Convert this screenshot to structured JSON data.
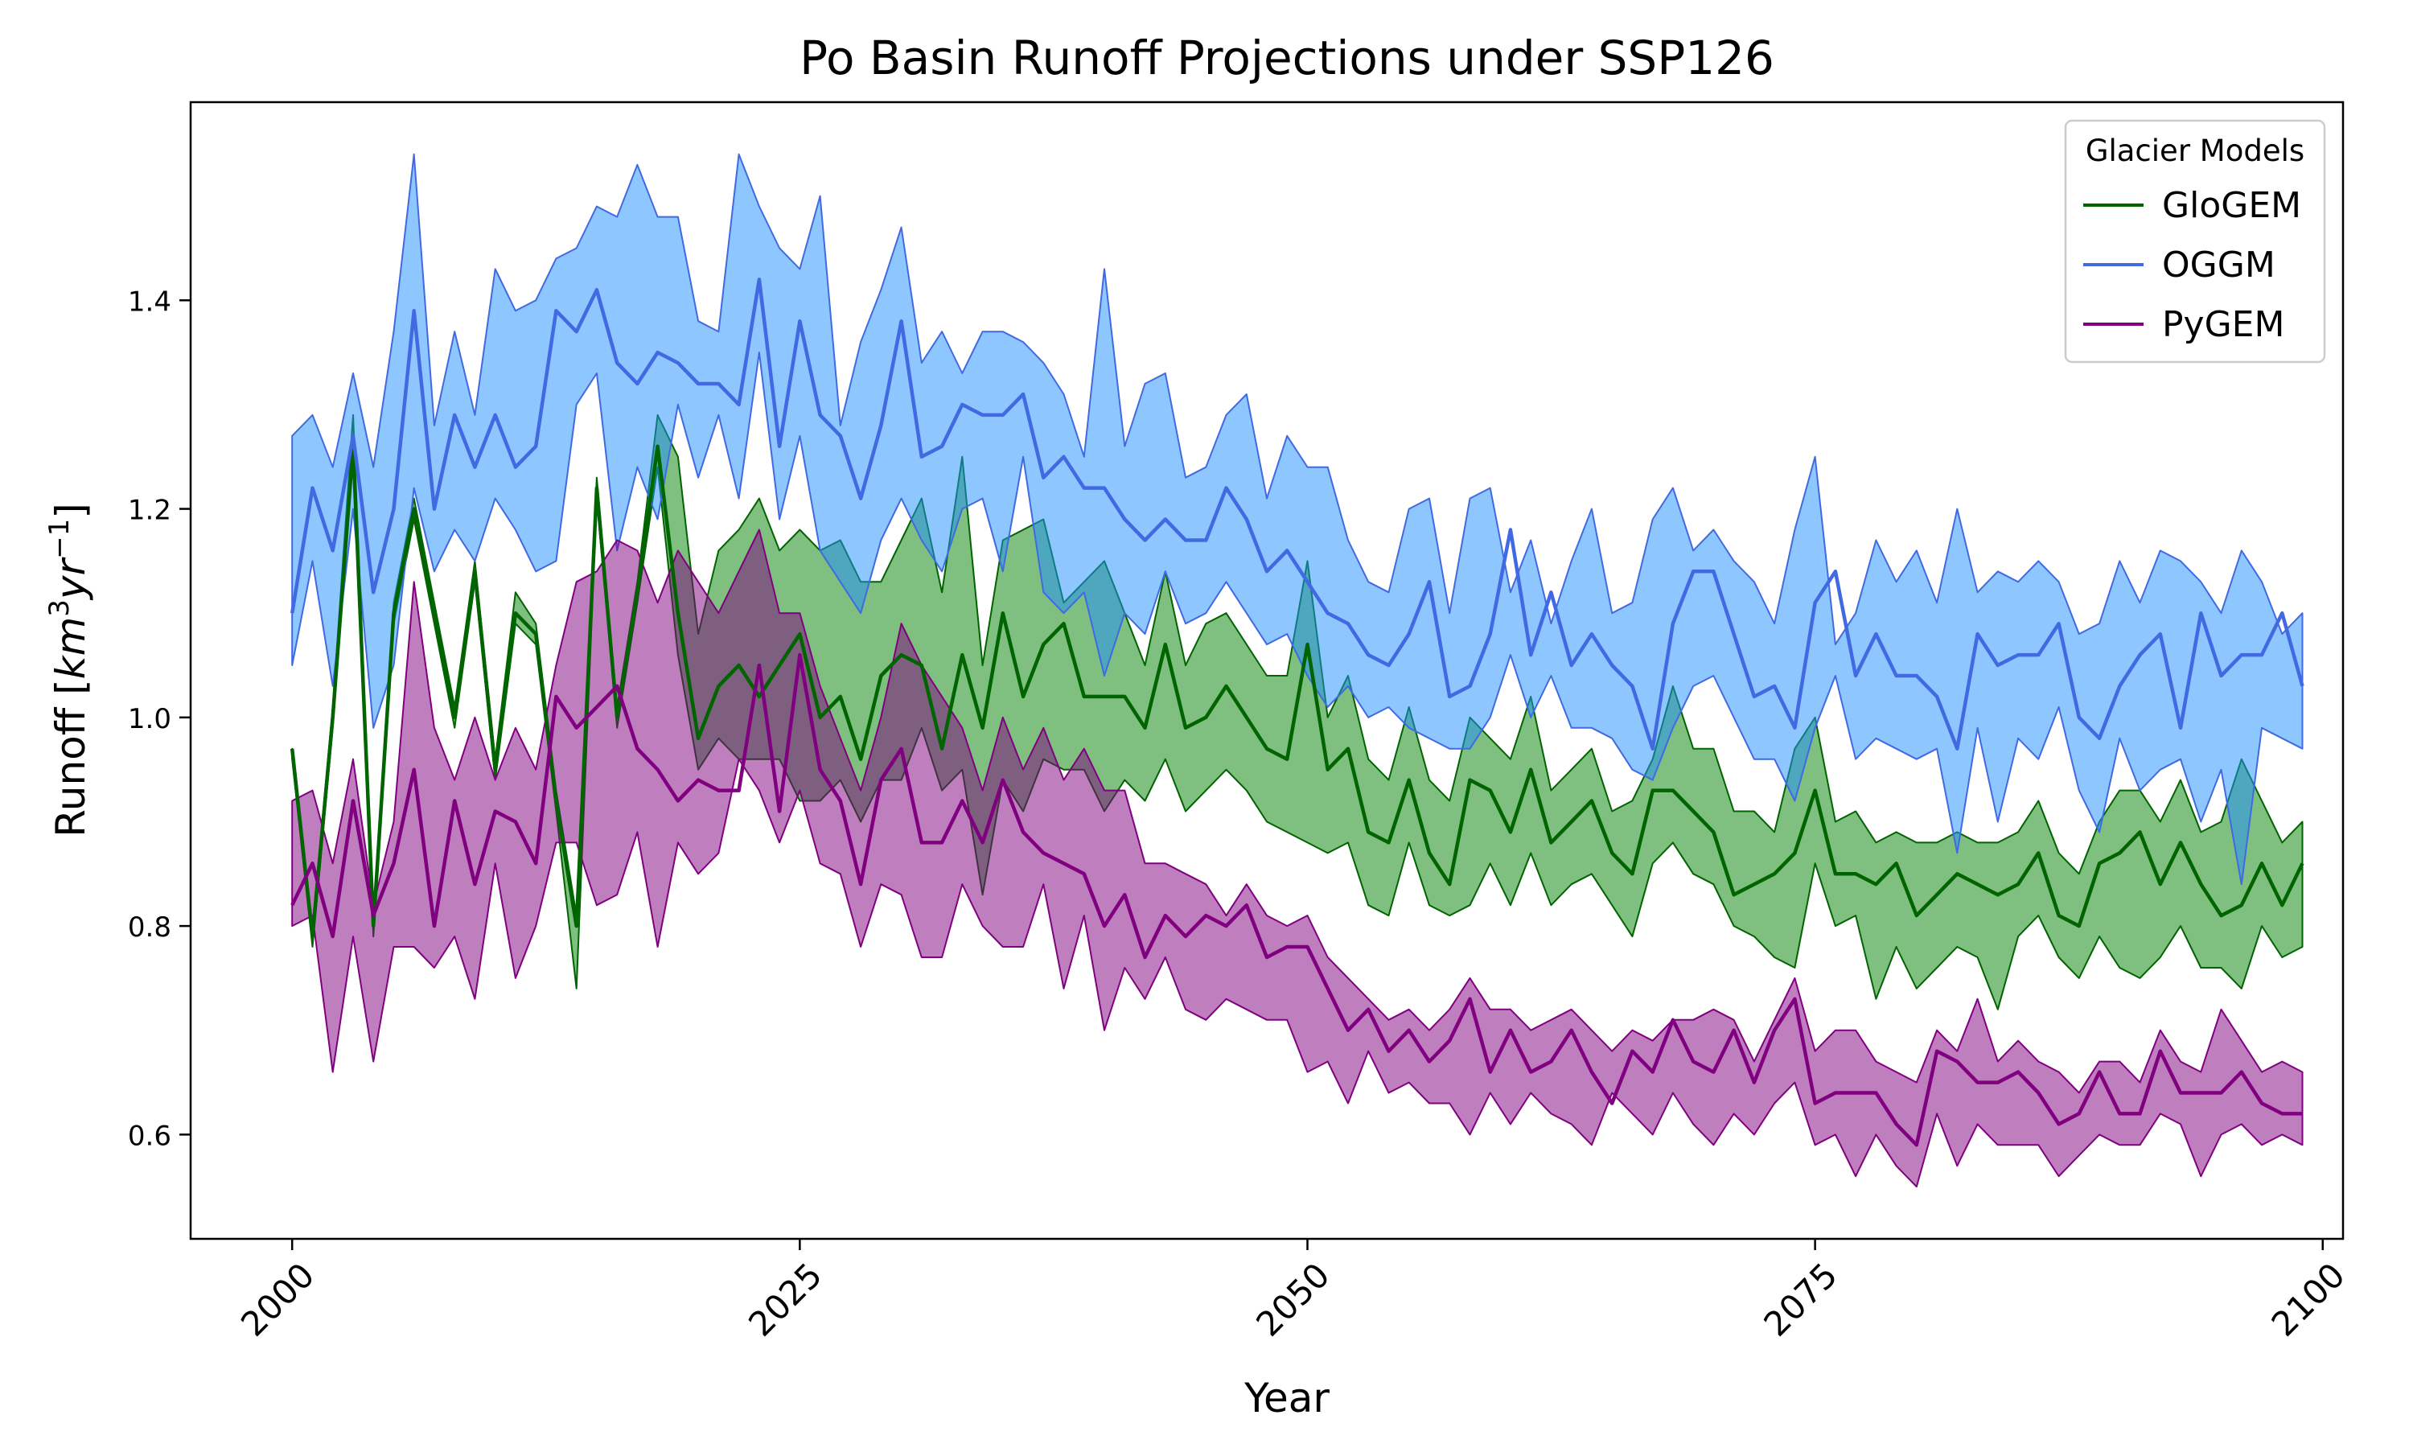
{
  "chart_data": {
    "type": "line",
    "title": "Po Basin Runoff Projections under SSP126",
    "xlabel": "Year",
    "ylabel": "Runoff [km³yr⁻¹]",
    "ylabel_parts": {
      "prefix": "Runoff [",
      "u1": "km",
      "sup1": "3",
      "u2": "yr",
      "sup2": "−1",
      "suffix": "]"
    },
    "xlim": [
      1995,
      2101
    ],
    "ylim": [
      0.5,
      1.59
    ],
    "xticks": [
      2000,
      2025,
      2050,
      2075,
      2100
    ],
    "yticks": [
      0.6,
      0.8,
      1.0,
      1.2,
      1.4
    ],
    "ytick_labels": [
      "0.6",
      "0.8",
      "1.0",
      "1.2",
      "1.4"
    ],
    "legend": {
      "title": "Glacier Models",
      "position": "top-right"
    },
    "x_start": 2000,
    "x_end": 2099,
    "series": [
      {
        "name": "GloGEM",
        "color": "#006400",
        "fill": "#008000",
        "fill_opacity": 0.5,
        "mean": [
          0.97,
          0.79,
          1.0,
          1.26,
          0.8,
          1.1,
          1.2,
          1.1,
          1.0,
          1.14,
          0.95,
          1.1,
          1.08,
          0.92,
          0.8,
          1.22,
          1.0,
          1.12,
          1.26,
          1.1,
          0.98,
          1.03,
          1.05,
          1.02,
          1.05,
          1.08,
          1.0,
          1.02,
          0.96,
          1.04,
          1.06,
          1.05,
          0.97,
          1.06,
          0.99,
          1.1,
          1.02,
          1.07,
          1.09,
          1.02,
          1.02,
          1.02,
          0.99,
          1.07,
          0.99,
          1.0,
          1.03,
          1.0,
          0.97,
          0.96,
          1.07,
          0.95,
          0.97,
          0.89,
          0.88,
          0.94,
          0.87,
          0.84,
          0.94,
          0.93,
          0.89,
          0.95,
          0.88,
          0.9,
          0.92,
          0.87,
          0.85,
          0.93,
          0.93,
          0.91,
          0.89,
          0.83,
          0.84,
          0.85,
          0.87,
          0.93,
          0.85,
          0.85,
          0.84,
          0.86,
          0.81,
          0.83,
          0.85,
          0.84,
          0.83,
          0.84,
          0.87,
          0.81,
          0.8,
          0.86,
          0.87,
          0.89,
          0.84,
          0.88,
          0.84,
          0.81,
          0.82,
          0.86,
          0.82,
          0.86
        ],
        "lower": [
          0.96,
          0.78,
          0.99,
          1.25,
          0.79,
          1.09,
          1.19,
          1.09,
          0.99,
          1.13,
          0.94,
          1.09,
          1.07,
          0.91,
          0.74,
          1.21,
          0.99,
          1.11,
          1.24,
          1.06,
          0.95,
          0.98,
          0.96,
          0.96,
          0.96,
          0.92,
          0.92,
          0.94,
          0.9,
          0.94,
          0.94,
          0.99,
          0.93,
          0.95,
          0.83,
          0.94,
          0.91,
          0.96,
          0.95,
          0.95,
          0.91,
          0.94,
          0.92,
          0.96,
          0.91,
          0.93,
          0.95,
          0.93,
          0.9,
          0.89,
          0.88,
          0.87,
          0.88,
          0.82,
          0.81,
          0.88,
          0.82,
          0.81,
          0.82,
          0.86,
          0.82,
          0.87,
          0.82,
          0.84,
          0.85,
          0.82,
          0.79,
          0.86,
          0.88,
          0.85,
          0.84,
          0.8,
          0.79,
          0.77,
          0.76,
          0.86,
          0.8,
          0.81,
          0.73,
          0.78,
          0.74,
          0.76,
          0.78,
          0.77,
          0.72,
          0.79,
          0.81,
          0.77,
          0.75,
          0.79,
          0.76,
          0.75,
          0.77,
          0.8,
          0.76,
          0.76,
          0.74,
          0.8,
          0.77,
          0.78
        ],
        "upper": [
          0.97,
          0.8,
          1.01,
          1.29,
          0.81,
          1.11,
          1.21,
          1.11,
          1.01,
          1.15,
          0.96,
          1.12,
          1.09,
          0.93,
          0.81,
          1.23,
          1.01,
          1.13,
          1.29,
          1.25,
          1.08,
          1.16,
          1.18,
          1.21,
          1.16,
          1.18,
          1.16,
          1.17,
          1.13,
          1.13,
          1.17,
          1.21,
          1.12,
          1.25,
          1.05,
          1.17,
          1.18,
          1.19,
          1.11,
          1.13,
          1.15,
          1.1,
          1.05,
          1.14,
          1.05,
          1.09,
          1.1,
          1.07,
          1.04,
          1.04,
          1.15,
          1.0,
          1.04,
          0.96,
          0.94,
          1.01,
          0.94,
          0.92,
          1.0,
          0.98,
          0.96,
          1.02,
          0.93,
          0.95,
          0.97,
          0.91,
          0.92,
          0.96,
          1.03,
          0.97,
          0.97,
          0.91,
          0.91,
          0.89,
          0.97,
          1.0,
          0.9,
          0.91,
          0.88,
          0.89,
          0.88,
          0.88,
          0.89,
          0.88,
          0.88,
          0.89,
          0.92,
          0.87,
          0.85,
          0.9,
          0.93,
          0.93,
          0.9,
          0.94,
          0.89,
          0.9,
          0.96,
          0.92,
          0.88,
          0.9
        ]
      },
      {
        "name": "OGGM",
        "color": "#4169e1",
        "fill": "#1e90ff",
        "fill_opacity": 0.5,
        "mean": [
          1.1,
          1.22,
          1.16,
          1.27,
          1.12,
          1.2,
          1.39,
          1.2,
          1.29,
          1.24,
          1.29,
          1.24,
          1.26,
          1.39,
          1.37,
          1.41,
          1.34,
          1.32,
          1.35,
          1.34,
          1.32,
          1.32,
          1.3,
          1.42,
          1.26,
          1.38,
          1.29,
          1.27,
          1.21,
          1.28,
          1.38,
          1.25,
          1.26,
          1.3,
          1.29,
          1.29,
          1.31,
          1.23,
          1.25,
          1.22,
          1.22,
          1.19,
          1.17,
          1.19,
          1.17,
          1.17,
          1.22,
          1.19,
          1.14,
          1.16,
          1.13,
          1.1,
          1.09,
          1.06,
          1.05,
          1.08,
          1.13,
          1.02,
          1.03,
          1.08,
          1.18,
          1.06,
          1.12,
          1.05,
          1.08,
          1.05,
          1.03,
          0.97,
          1.09,
          1.14,
          1.14,
          1.08,
          1.02,
          1.03,
          0.99,
          1.11,
          1.14,
          1.04,
          1.08,
          1.04,
          1.04,
          1.02,
          0.97,
          1.08,
          1.05,
          1.06,
          1.06,
          1.09,
          1.0,
          0.98,
          1.03,
          1.06,
          1.08,
          0.99,
          1.1,
          1.04,
          1.06,
          1.06,
          1.1,
          1.03
        ],
        "lower": [
          1.05,
          1.15,
          1.03,
          1.2,
          0.99,
          1.05,
          1.22,
          1.14,
          1.18,
          1.15,
          1.21,
          1.18,
          1.14,
          1.15,
          1.3,
          1.33,
          1.16,
          1.24,
          1.19,
          1.3,
          1.23,
          1.29,
          1.21,
          1.35,
          1.19,
          1.27,
          1.16,
          1.13,
          1.1,
          1.17,
          1.21,
          1.17,
          1.14,
          1.2,
          1.21,
          1.14,
          1.25,
          1.12,
          1.1,
          1.12,
          1.04,
          1.1,
          1.08,
          1.14,
          1.09,
          1.1,
          1.13,
          1.1,
          1.07,
          1.08,
          1.04,
          1.01,
          1.03,
          1.0,
          1.01,
          0.99,
          0.98,
          0.97,
          0.97,
          1.0,
          1.06,
          1.0,
          1.04,
          0.99,
          0.99,
          0.98,
          0.95,
          0.94,
          0.99,
          1.03,
          1.04,
          1.0,
          0.96,
          0.96,
          0.92,
          0.99,
          1.04,
          0.96,
          0.98,
          0.97,
          0.96,
          0.97,
          0.87,
          0.99,
          0.9,
          0.98,
          0.96,
          1.01,
          0.93,
          0.89,
          0.98,
          0.93,
          0.95,
          0.96,
          0.9,
          0.95,
          0.84,
          0.99,
          0.98,
          0.97
        ],
        "upper": [
          1.27,
          1.29,
          1.24,
          1.33,
          1.24,
          1.37,
          1.54,
          1.28,
          1.37,
          1.29,
          1.43,
          1.39,
          1.4,
          1.44,
          1.45,
          1.49,
          1.48,
          1.53,
          1.48,
          1.48,
          1.38,
          1.37,
          1.54,
          1.49,
          1.45,
          1.43,
          1.5,
          1.28,
          1.36,
          1.41,
          1.47,
          1.34,
          1.37,
          1.33,
          1.37,
          1.37,
          1.36,
          1.34,
          1.31,
          1.25,
          1.43,
          1.26,
          1.32,
          1.33,
          1.23,
          1.24,
          1.29,
          1.31,
          1.21,
          1.27,
          1.24,
          1.24,
          1.17,
          1.13,
          1.12,
          1.2,
          1.21,
          1.1,
          1.21,
          1.22,
          1.12,
          1.17,
          1.09,
          1.15,
          1.2,
          1.1,
          1.11,
          1.19,
          1.22,
          1.16,
          1.18,
          1.15,
          1.13,
          1.09,
          1.18,
          1.25,
          1.07,
          1.1,
          1.17,
          1.13,
          1.16,
          1.11,
          1.2,
          1.12,
          1.14,
          1.13,
          1.15,
          1.13,
          1.08,
          1.09,
          1.15,
          1.11,
          1.16,
          1.15,
          1.13,
          1.1,
          1.16,
          1.13,
          1.08,
          1.1
        ]
      },
      {
        "name": "PyGEM",
        "color": "#800080",
        "fill": "#800080",
        "fill_opacity": 0.5,
        "mean": [
          0.82,
          0.86,
          0.79,
          0.92,
          0.81,
          0.86,
          0.95,
          0.8,
          0.92,
          0.84,
          0.91,
          0.9,
          0.86,
          1.02,
          0.99,
          1.01,
          1.03,
          0.97,
          0.95,
          0.92,
          0.94,
          0.93,
          0.93,
          1.05,
          0.91,
          1.06,
          0.95,
          0.92,
          0.84,
          0.94,
          0.97,
          0.88,
          0.88,
          0.92,
          0.88,
          0.94,
          0.89,
          0.87,
          0.86,
          0.85,
          0.8,
          0.83,
          0.77,
          0.81,
          0.79,
          0.81,
          0.8,
          0.82,
          0.77,
          0.78,
          0.78,
          0.74,
          0.7,
          0.72,
          0.68,
          0.7,
          0.67,
          0.69,
          0.73,
          0.66,
          0.7,
          0.66,
          0.67,
          0.7,
          0.66,
          0.63,
          0.68,
          0.66,
          0.71,
          0.67,
          0.66,
          0.7,
          0.65,
          0.7,
          0.73,
          0.63,
          0.64,
          0.64,
          0.64,
          0.61,
          0.59,
          0.68,
          0.67,
          0.65,
          0.65,
          0.66,
          0.64,
          0.61,
          0.62,
          0.66,
          0.62,
          0.62,
          0.68,
          0.64,
          0.64,
          0.64,
          0.66,
          0.63,
          0.62,
          0.62
        ],
        "lower": [
          0.8,
          0.81,
          0.66,
          0.79,
          0.67,
          0.78,
          0.78,
          0.76,
          0.79,
          0.73,
          0.86,
          0.75,
          0.8,
          0.88,
          0.88,
          0.82,
          0.83,
          0.89,
          0.78,
          0.88,
          0.85,
          0.87,
          0.96,
          0.93,
          0.88,
          0.93,
          0.86,
          0.85,
          0.78,
          0.84,
          0.83,
          0.77,
          0.77,
          0.84,
          0.8,
          0.78,
          0.78,
          0.84,
          0.74,
          0.81,
          0.7,
          0.76,
          0.73,
          0.77,
          0.72,
          0.71,
          0.73,
          0.72,
          0.71,
          0.71,
          0.66,
          0.67,
          0.63,
          0.68,
          0.64,
          0.65,
          0.63,
          0.63,
          0.6,
          0.64,
          0.61,
          0.64,
          0.62,
          0.61,
          0.59,
          0.64,
          0.62,
          0.6,
          0.64,
          0.61,
          0.59,
          0.62,
          0.6,
          0.63,
          0.65,
          0.59,
          0.6,
          0.56,
          0.6,
          0.57,
          0.55,
          0.62,
          0.57,
          0.61,
          0.59,
          0.59,
          0.59,
          0.56,
          0.58,
          0.6,
          0.59,
          0.59,
          0.62,
          0.61,
          0.56,
          0.6,
          0.61,
          0.59,
          0.6,
          0.59
        ],
        "upper": [
          0.92,
          0.93,
          0.86,
          0.96,
          0.82,
          0.9,
          1.13,
          0.99,
          0.94,
          1.0,
          0.94,
          0.99,
          0.95,
          1.05,
          1.13,
          1.14,
          1.17,
          1.16,
          1.11,
          1.16,
          1.13,
          1.1,
          1.14,
          1.18,
          1.1,
          1.1,
          1.03,
          0.98,
          0.93,
          1.0,
          1.09,
          1.05,
          1.02,
          0.99,
          0.93,
          1.0,
          0.95,
          0.99,
          0.94,
          0.97,
          0.93,
          0.93,
          0.86,
          0.86,
          0.85,
          0.84,
          0.81,
          0.84,
          0.81,
          0.8,
          0.81,
          0.77,
          0.75,
          0.73,
          0.71,
          0.72,
          0.7,
          0.72,
          0.75,
          0.72,
          0.72,
          0.7,
          0.71,
          0.72,
          0.7,
          0.68,
          0.7,
          0.69,
          0.71,
          0.71,
          0.72,
          0.71,
          0.67,
          0.71,
          0.75,
          0.68,
          0.7,
          0.7,
          0.67,
          0.66,
          0.65,
          0.7,
          0.68,
          0.73,
          0.67,
          0.69,
          0.67,
          0.66,
          0.64,
          0.67,
          0.67,
          0.65,
          0.7,
          0.67,
          0.66,
          0.72,
          0.69,
          0.66,
          0.67,
          0.66
        ]
      }
    ]
  }
}
